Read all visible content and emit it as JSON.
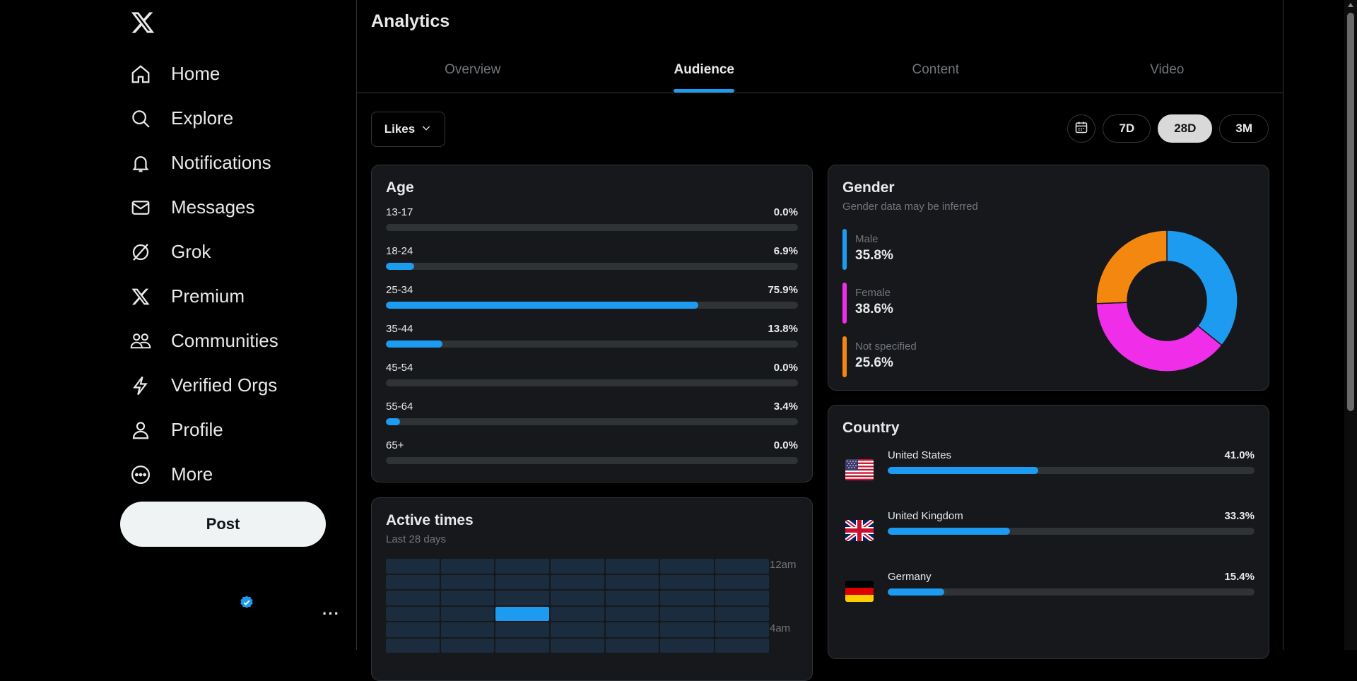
{
  "nav": {
    "items": [
      {
        "label": "Home",
        "icon": "home-icon"
      },
      {
        "label": "Explore",
        "icon": "search-icon"
      },
      {
        "label": "Notifications",
        "icon": "bell-icon"
      },
      {
        "label": "Messages",
        "icon": "envelope-icon"
      },
      {
        "label": "Grok",
        "icon": "grok-icon"
      },
      {
        "label": "Premium",
        "icon": "x-logo-icon"
      },
      {
        "label": "Communities",
        "icon": "people-icon"
      },
      {
        "label": "Verified Orgs",
        "icon": "lightning-icon"
      },
      {
        "label": "Profile",
        "icon": "person-icon"
      },
      {
        "label": "More",
        "icon": "more-circle-icon"
      }
    ],
    "post_label": "Post",
    "account_more": "···"
  },
  "header": {
    "title": "Analytics",
    "tabs": [
      "Overview",
      "Audience",
      "Content",
      "Video"
    ],
    "active_tab": "Audience"
  },
  "controls": {
    "metric": "Likes",
    "ranges": [
      "7D",
      "28D",
      "3M"
    ],
    "active_range": "28D"
  },
  "age": {
    "title": "Age",
    "rows": [
      {
        "label": "13-17",
        "value": "0.0%",
        "pct": 0.0
      },
      {
        "label": "18-24",
        "value": "6.9%",
        "pct": 6.9
      },
      {
        "label": "25-34",
        "value": "75.9%",
        "pct": 75.9
      },
      {
        "label": "35-44",
        "value": "13.8%",
        "pct": 13.8
      },
      {
        "label": "45-54",
        "value": "0.0%",
        "pct": 0.0
      },
      {
        "label": "55-64",
        "value": "3.4%",
        "pct": 3.4
      },
      {
        "label": "65+",
        "value": "0.0%",
        "pct": 0.0
      }
    ]
  },
  "gender": {
    "title": "Gender",
    "subtitle": "Gender data may be inferred",
    "items": [
      {
        "label": "Male",
        "value": "35.8%",
        "pct": 35.8,
        "color": "#1d9bf0"
      },
      {
        "label": "Female",
        "value": "38.6%",
        "pct": 38.6,
        "color": "#f02ee9"
      },
      {
        "label": "Not specified",
        "value": "25.6%",
        "pct": 25.6,
        "color": "#f4870f"
      }
    ]
  },
  "country": {
    "title": "Country",
    "rows": [
      {
        "label": "United States",
        "value": "41.0%",
        "pct": 41.0,
        "flag": "us-flag-icon"
      },
      {
        "label": "United Kingdom",
        "value": "33.3%",
        "pct": 33.3,
        "flag": "uk-flag-icon"
      },
      {
        "label": "Germany",
        "value": "15.4%",
        "pct": 15.4,
        "flag": "germany-flag-icon"
      }
    ]
  },
  "active_times": {
    "title": "Active times",
    "subtitle": "Last 28 days",
    "hour_labels": [
      "12am",
      "4am"
    ]
  },
  "colors": {
    "accent": "#1d9bf0"
  }
}
